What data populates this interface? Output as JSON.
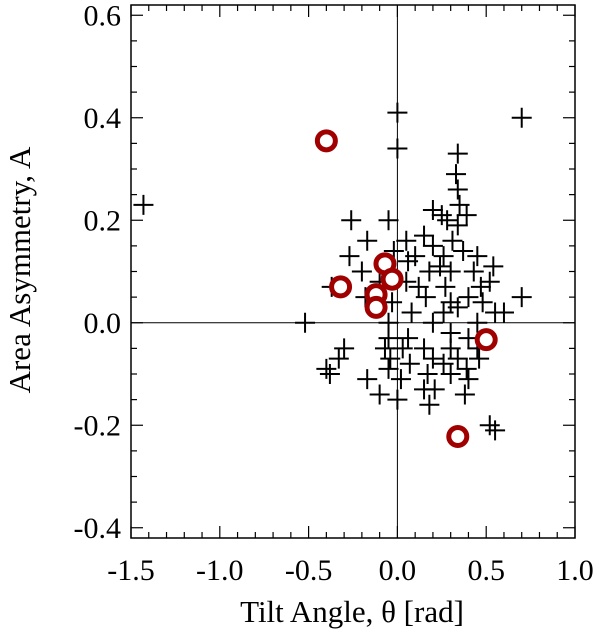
{
  "chart_data": {
    "type": "scatter",
    "title": "",
    "xlabel": "Tilt Angle, θ [rad]",
    "ylabel": "Area Asymmetry, A",
    "xlim": [
      -1.5,
      1.0
    ],
    "ylim": [
      -0.42,
      0.62
    ],
    "xticks": [
      -1.5,
      -1.0,
      -0.5,
      0.0,
      0.5,
      1.0
    ],
    "xtick_labels": [
      "-1.5",
      "-1.0",
      "-0.5",
      "0.0",
      "0.5",
      "1.0"
    ],
    "yticks": [
      -0.4,
      -0.2,
      0.0,
      0.2,
      0.4,
      0.6
    ],
    "ytick_labels": [
      "-0.4",
      "-0.2",
      "0.0",
      "0.2",
      "0.4",
      "0.6"
    ],
    "reference_lines": {
      "x": 0.0,
      "y": 0.0
    },
    "grid": false,
    "legend": "none",
    "series": [
      {
        "marker": "plus",
        "color": "#000000",
        "points": [
          [
            -1.43,
            0.23
          ],
          [
            0.0,
            0.41
          ],
          [
            0.7,
            0.4
          ],
          [
            0.0,
            0.34
          ],
          [
            0.34,
            0.33
          ],
          [
            0.33,
            0.29
          ],
          [
            0.34,
            0.26
          ],
          [
            0.35,
            0.23
          ],
          [
            0.39,
            0.21
          ],
          [
            0.2,
            0.22
          ],
          [
            0.25,
            0.21
          ],
          [
            -0.26,
            0.2
          ],
          [
            -0.05,
            0.2
          ],
          [
            0.28,
            0.2
          ],
          [
            0.34,
            0.19
          ],
          [
            -0.17,
            0.16
          ],
          [
            0.05,
            0.16
          ],
          [
            0.15,
            0.17
          ],
          [
            0.2,
            0.15
          ],
          [
            0.31,
            0.16
          ],
          [
            -0.27,
            0.13
          ],
          [
            -0.02,
            0.14
          ],
          [
            0.1,
            0.13
          ],
          [
            0.26,
            0.13
          ],
          [
            0.37,
            0.14
          ],
          [
            0.45,
            0.13
          ],
          [
            -0.2,
            0.1
          ],
          [
            0.06,
            0.12
          ],
          [
            0.18,
            0.1
          ],
          [
            0.24,
            0.11
          ],
          [
            0.3,
            0.1
          ],
          [
            0.43,
            0.1
          ],
          [
            0.54,
            0.11
          ],
          [
            -0.37,
            0.07
          ],
          [
            -0.1,
            0.08
          ],
          [
            0.05,
            0.08
          ],
          [
            0.12,
            0.07
          ],
          [
            0.27,
            0.07
          ],
          [
            0.47,
            0.07
          ],
          [
            0.52,
            0.08
          ],
          [
            -0.18,
            0.05
          ],
          [
            -0.03,
            0.04
          ],
          [
            0.16,
            0.05
          ],
          [
            0.3,
            0.04
          ],
          [
            0.4,
            0.05
          ],
          [
            0.48,
            0.04
          ],
          [
            0.7,
            0.05
          ],
          [
            0.08,
            0.02
          ],
          [
            0.26,
            0.02
          ],
          [
            0.34,
            0.03
          ],
          [
            0.55,
            0.02
          ],
          [
            0.6,
            0.02
          ],
          [
            -0.52,
            0.0
          ],
          [
            -0.05,
            0.0
          ],
          [
            0.2,
            0.0
          ],
          [
            0.45,
            0.0
          ],
          [
            -0.05,
            -0.03
          ],
          [
            0.06,
            -0.03
          ],
          [
            0.3,
            -0.02
          ],
          [
            0.4,
            -0.03
          ],
          [
            -0.3,
            -0.05
          ],
          [
            -0.07,
            -0.05
          ],
          [
            0.03,
            -0.05
          ],
          [
            0.15,
            -0.05
          ],
          [
            0.3,
            -0.05
          ],
          [
            0.45,
            -0.05
          ],
          [
            -0.33,
            -0.07
          ],
          [
            -0.04,
            -0.07
          ],
          [
            0.2,
            -0.07
          ],
          [
            0.34,
            -0.07
          ],
          [
            0.46,
            -0.07
          ],
          [
            -0.4,
            -0.09
          ],
          [
            -0.05,
            -0.09
          ],
          [
            0.07,
            -0.08
          ],
          [
            0.26,
            -0.08
          ],
          [
            0.39,
            -0.09
          ],
          [
            -0.38,
            -0.1
          ],
          [
            0.17,
            -0.1
          ],
          [
            0.3,
            -0.1
          ],
          [
            -0.17,
            -0.11
          ],
          [
            0.02,
            -0.11
          ],
          [
            0.4,
            -0.11
          ],
          [
            0.21,
            -0.13
          ],
          [
            -0.1,
            -0.14
          ],
          [
            0.15,
            -0.13
          ],
          [
            0.38,
            -0.14
          ],
          [
            0.0,
            -0.15
          ],
          [
            0.18,
            -0.16
          ],
          [
            0.52,
            -0.2
          ],
          [
            0.55,
            -0.21
          ]
        ]
      },
      {
        "marker": "circle",
        "color": "#A00000",
        "points": [
          [
            -0.4,
            0.355
          ],
          [
            -0.32,
            0.07
          ],
          [
            -0.07,
            0.115
          ],
          [
            -0.03,
            0.085
          ],
          [
            -0.12,
            0.055
          ],
          [
            -0.12,
            0.03
          ],
          [
            0.5,
            -0.033
          ],
          [
            0.34,
            -0.222
          ]
        ]
      }
    ]
  }
}
